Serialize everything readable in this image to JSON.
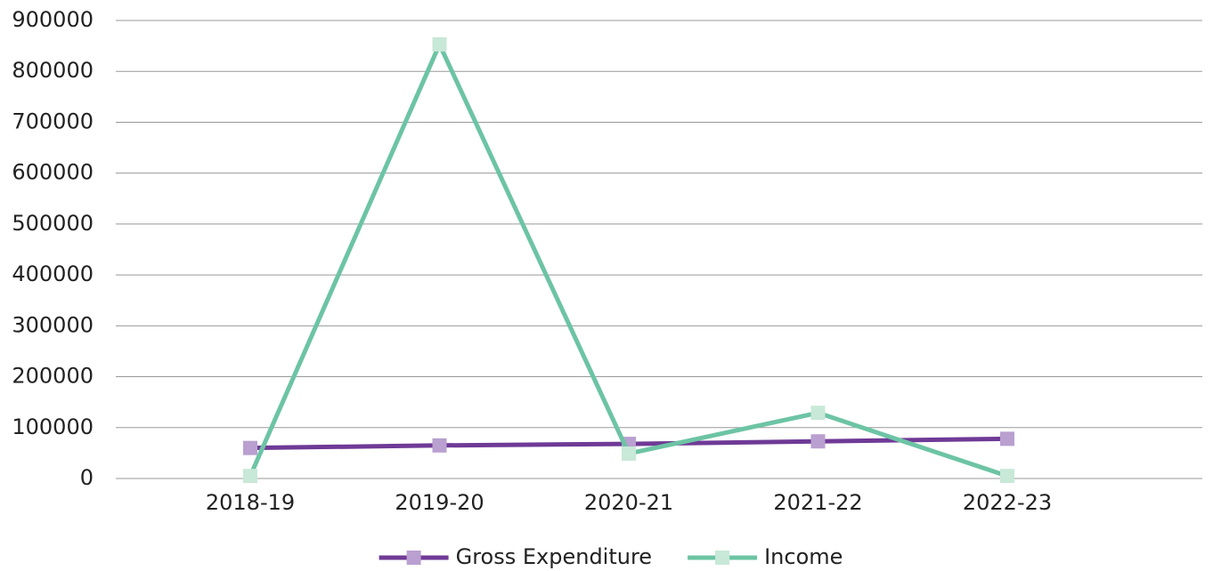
{
  "chart_data": {
    "type": "line",
    "categories": [
      "2018-19",
      "2019-20",
      "2020-21",
      "2021-22",
      "2022-23"
    ],
    "series": [
      {
        "name": "Gross Expenditure",
        "color": "#6f3a96",
        "marker_color": "#b9a0d0",
        "values": [
          60000,
          65000,
          68000,
          73000,
          78000
        ]
      },
      {
        "name": "Income",
        "color": "#6cc4a4",
        "marker_color": "#c8e8d8",
        "values": [
          5000,
          853000,
          49000,
          129000,
          5000
        ]
      }
    ],
    "ylim": [
      0,
      900000
    ],
    "yticks": [
      0,
      100000,
      200000,
      300000,
      400000,
      500000,
      600000,
      700000,
      800000,
      900000
    ],
    "grid": true,
    "legend": "bottom"
  }
}
